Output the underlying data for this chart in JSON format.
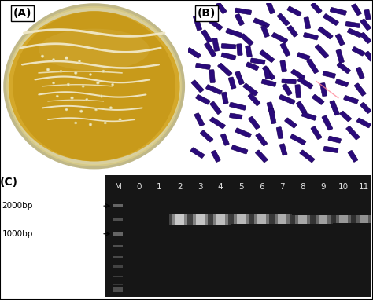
{
  "panel_A_label": "(A)",
  "panel_B_label": "(B)",
  "panel_C_label": "(C)",
  "panel_A_outer_bg": "#c8c8c0",
  "panel_A_plate_color": "#c8920a",
  "panel_A_plate_rim": "#b8a060",
  "panel_B_bg": "#e0dde8",
  "bacteria_color": "#2a0a7a",
  "bacteria_edge": "#1a0050",
  "gel_bg": "#1a1a1a",
  "gel_lane_bg": "#101010",
  "lane_labels": [
    "M",
    "0",
    "1",
    "2",
    "3",
    "4",
    "5",
    "6",
    "7",
    "8",
    "9",
    "10",
    "11"
  ],
  "marker_labels": [
    "2000bp",
    "1000bp"
  ],
  "figure_bg": "#ffffff",
  "label_fontsize": 10,
  "tick_fontsize": 8
}
